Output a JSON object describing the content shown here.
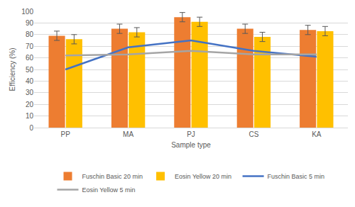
{
  "chart_data": {
    "type": "bar",
    "x_label": "Sample type",
    "y_label": "Efficiency (%)",
    "categories": [
      "PP",
      "MA",
      "PJ",
      "CS",
      "KA"
    ],
    "series": [
      {
        "name": "Fuschin Basic 20 min",
        "type": "bar",
        "color": "#ed7d31",
        "values": [
          79,
          85,
          95,
          85,
          84
        ],
        "error": [
          4,
          4,
          4,
          4,
          4
        ]
      },
      {
        "name": "Eosin Yellow 20 min",
        "type": "bar",
        "color": "#ffc000",
        "values": [
          76,
          82,
          91,
          78,
          83
        ],
        "error": [
          4,
          4,
          4,
          4,
          4
        ]
      },
      {
        "name": "Fuschin Basic 5 min",
        "type": "line",
        "color": "#4472c4",
        "values": [
          50,
          69,
          75,
          66,
          61
        ]
      },
      {
        "name": "Eosin Yellow 5 min",
        "type": "line",
        "color": "#a5a5a5",
        "values": [
          62,
          63,
          66,
          63,
          63
        ]
      }
    ],
    "ylim": [
      0,
      100
    ],
    "yticks": [
      0,
      10,
      20,
      30,
      40,
      50,
      60,
      70,
      80,
      90,
      100
    ],
    "grid": true,
    "legend": "bottom"
  }
}
